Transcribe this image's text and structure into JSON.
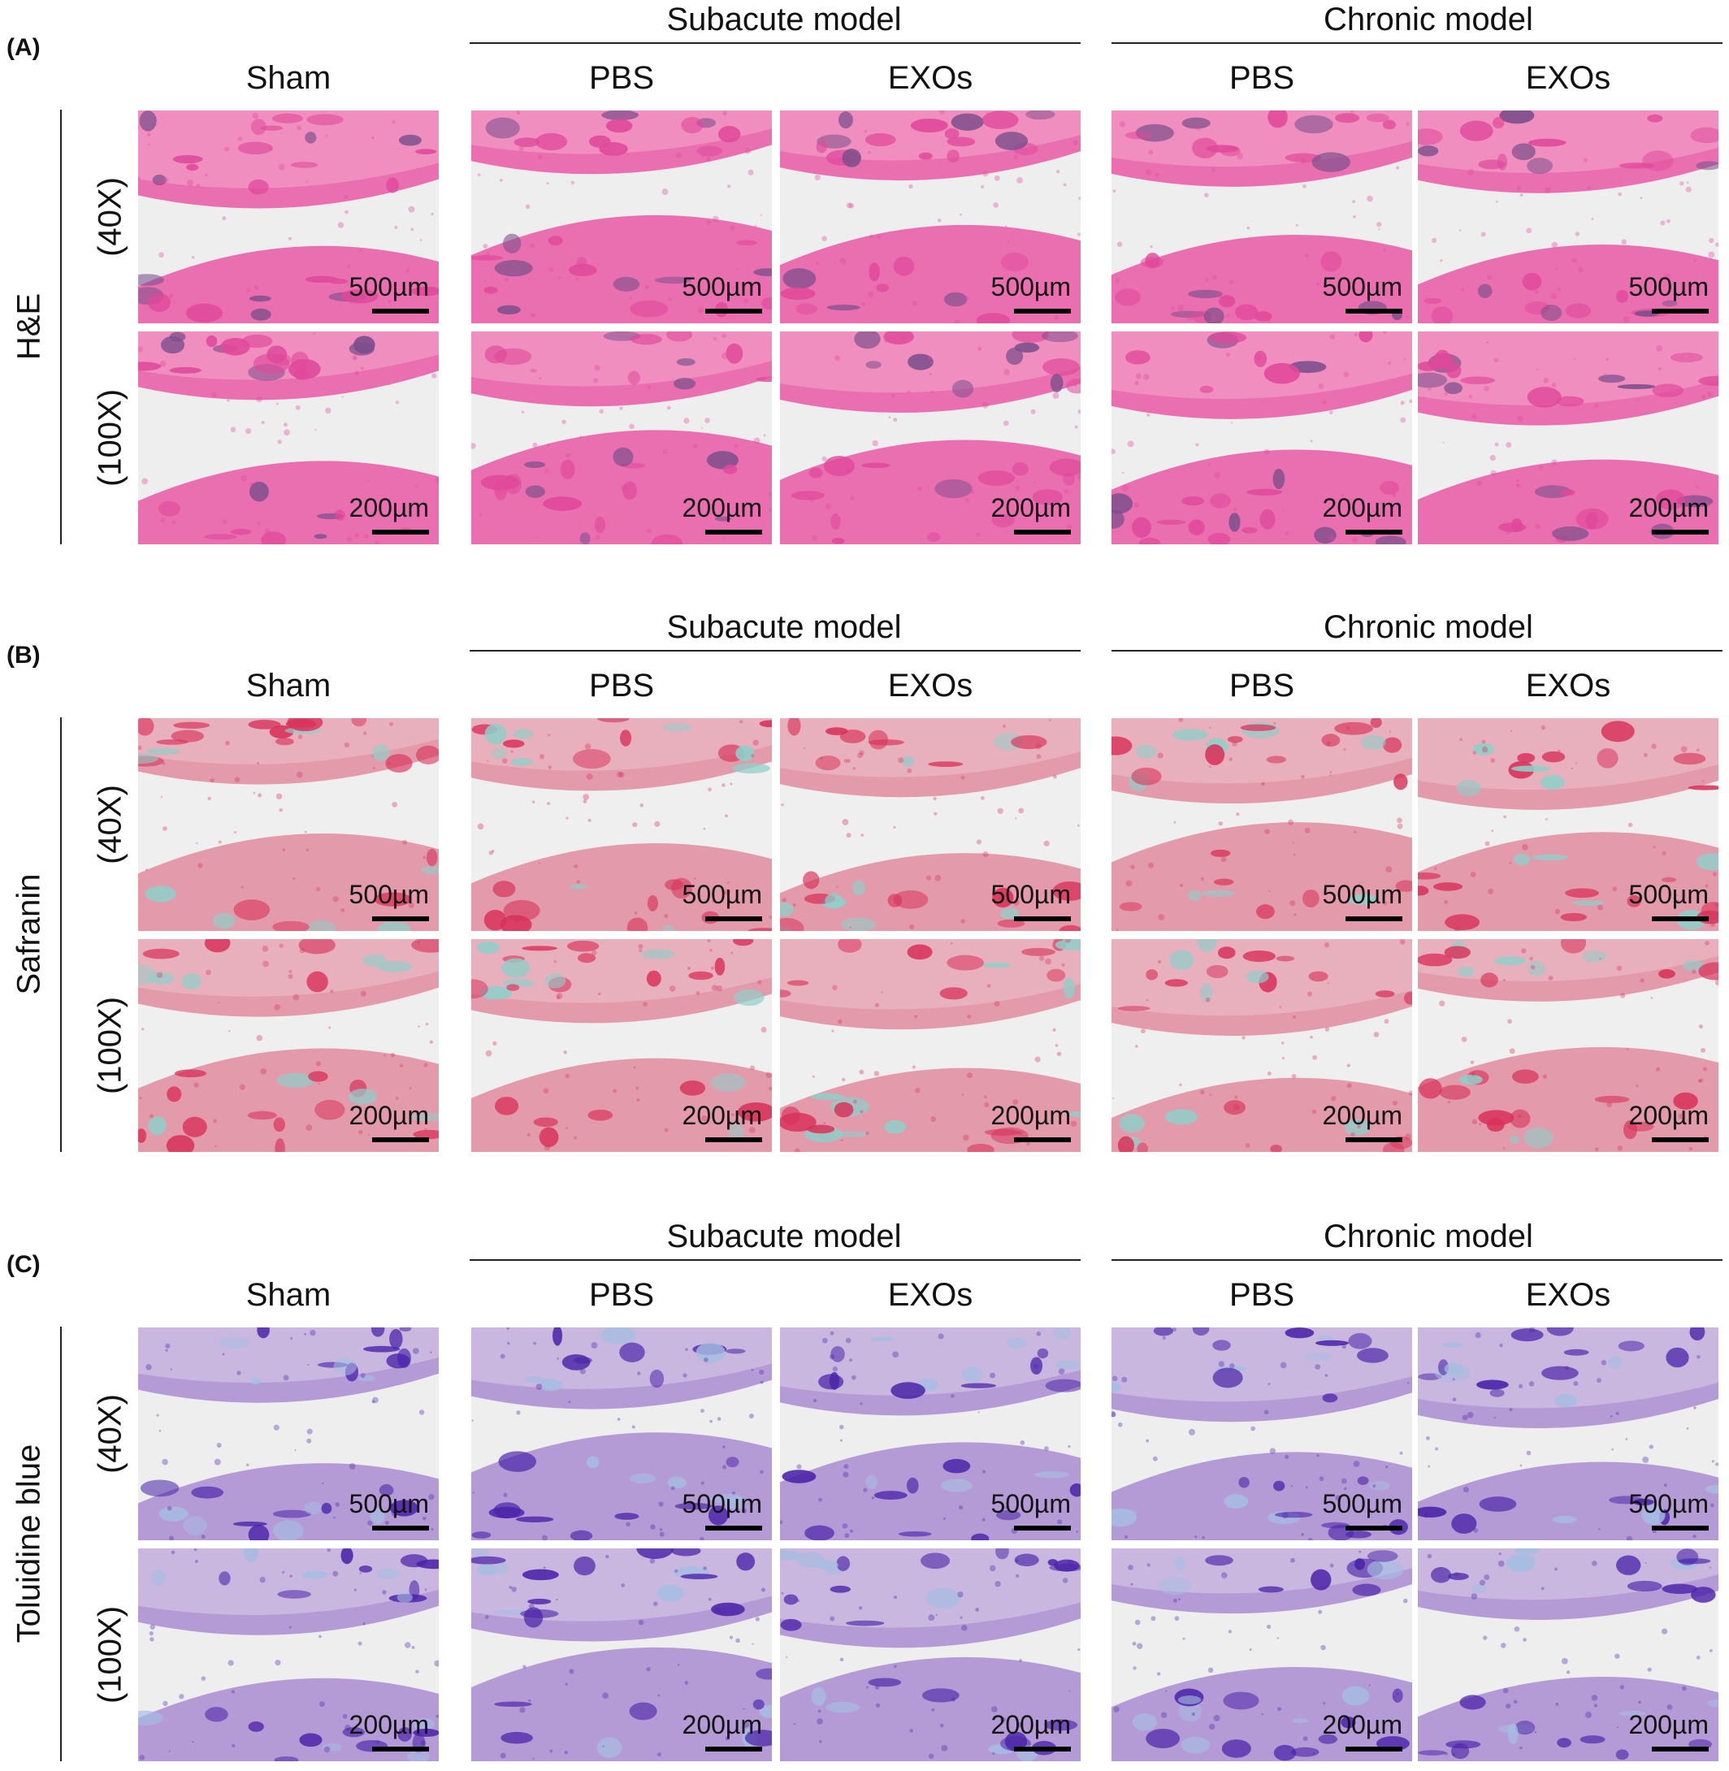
{
  "figure": {
    "panels": [
      {
        "letter": "(A)",
        "stain": "H&E"
      },
      {
        "letter": "(B)",
        "stain": "Safranin"
      },
      {
        "letter": "(C)",
        "stain": "Toluidine blue"
      }
    ],
    "groups": {
      "subacute": "Subacute model",
      "chronic": "Chronic model"
    },
    "columns": [
      "Sham",
      "PBS",
      "EXOs",
      "PBS",
      "EXOs"
    ],
    "magnifications": [
      "(40X)",
      "(100X)"
    ],
    "scale_bars": [
      "500µm",
      "200µm"
    ]
  },
  "stain_colors": {
    "he": {
      "bg": "#f2a8cc",
      "mid": "#ea6fb0",
      "dark": "#e0489a",
      "accent": "#7a4e8a",
      "blank": "#eeeeee"
    },
    "safranin": {
      "bg": "#ecc1cc",
      "mid": "#e39aab",
      "dark": "#d8325a",
      "accent": "#8fcfc9",
      "blank": "#efefef"
    },
    "toluidine": {
      "bg": "#d8cde8",
      "mid": "#b59bd6",
      "dark": "#4a22a8",
      "accent": "#a6bde2",
      "blank": "#eeeeee"
    }
  }
}
